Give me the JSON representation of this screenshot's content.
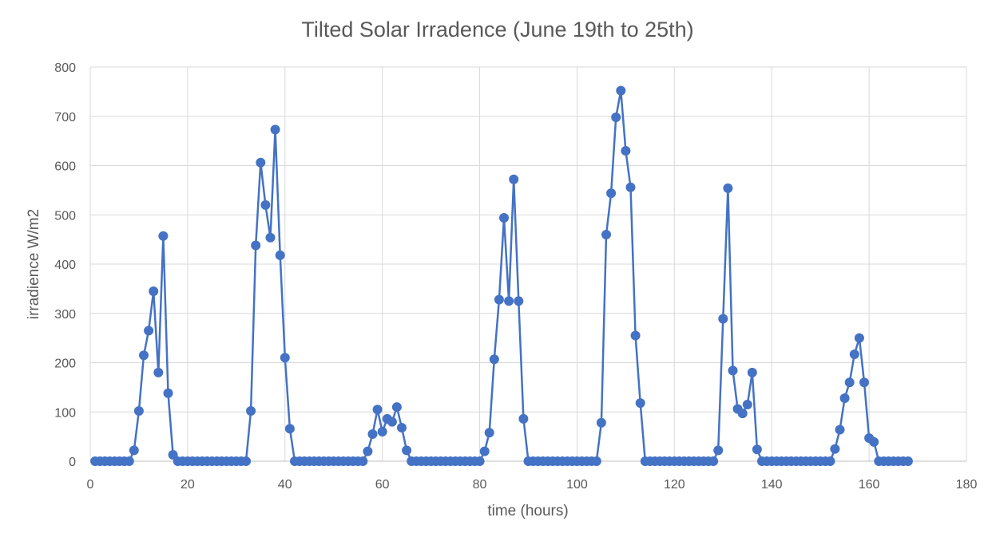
{
  "chart_data": {
    "type": "line",
    "title": "Tilted Solar Irradence (June 19th to 25th)",
    "xlabel": "time (hours)",
    "ylabel": "irradience W/m2",
    "xlim": [
      0,
      180
    ],
    "ylim": [
      0,
      800
    ],
    "x_ticks": [
      0,
      20,
      40,
      60,
      80,
      100,
      120,
      140,
      160,
      180
    ],
    "y_ticks": [
      0,
      100,
      200,
      300,
      400,
      500,
      600,
      700,
      800
    ],
    "grid": true,
    "legend": "none",
    "markers": true,
    "series_color": "#4472C4",
    "grid_color": "#D9D9D9",
    "series": [
      {
        "x": [
          1,
          2,
          3,
          4,
          5,
          6,
          7,
          8,
          9,
          10,
          11,
          12,
          13,
          14,
          15,
          16,
          17,
          18,
          19,
          20,
          21,
          22,
          23,
          24,
          25,
          26,
          27,
          28,
          29,
          30,
          31,
          32,
          33,
          34,
          35,
          36,
          37,
          38,
          39,
          40,
          41,
          42,
          43,
          44,
          45,
          46,
          47,
          48,
          49,
          50,
          51,
          52,
          53,
          54,
          55,
          56,
          57,
          58,
          59,
          60,
          61,
          62,
          63,
          64,
          65,
          66,
          67,
          68,
          69,
          70,
          71,
          72,
          73,
          74,
          75,
          76,
          77,
          78,
          79,
          80,
          81,
          82,
          83,
          84,
          85,
          86,
          87,
          88,
          89,
          90,
          91,
          92,
          93,
          94,
          95,
          96,
          97,
          98,
          99,
          100,
          101,
          102,
          103,
          104,
          105,
          106,
          107,
          108,
          109,
          110,
          111,
          112,
          113,
          114,
          115,
          116,
          117,
          118,
          119,
          120,
          121,
          122,
          123,
          124,
          125,
          126,
          127,
          128,
          129,
          130,
          131,
          132,
          133,
          134,
          135,
          136,
          137,
          138,
          139,
          140,
          141,
          142,
          143,
          144,
          145,
          146,
          147,
          148,
          149,
          150,
          151,
          152,
          153,
          154,
          155,
          156,
          157,
          158,
          159,
          160,
          161,
          162,
          163,
          164,
          165,
          166,
          167,
          168
        ],
        "y": [
          0,
          0,
          0,
          0,
          0,
          0,
          0,
          0,
          22,
          102,
          215,
          265,
          345,
          180,
          457,
          138,
          13,
          0,
          0,
          0,
          0,
          0,
          0,
          0,
          0,
          0,
          0,
          0,
          0,
          0,
          0,
          0,
          102,
          438,
          606,
          520,
          454,
          673,
          418,
          210,
          66,
          0,
          0,
          0,
          0,
          0,
          0,
          0,
          0,
          0,
          0,
          0,
          0,
          0,
          0,
          0,
          20,
          55,
          105,
          60,
          86,
          80,
          110,
          68,
          22,
          0,
          0,
          0,
          0,
          0,
          0,
          0,
          0,
          0,
          0,
          0,
          0,
          0,
          0,
          0,
          20,
          58,
          207,
          328,
          494,
          325,
          572,
          325,
          86,
          0,
          0,
          0,
          0,
          0,
          0,
          0,
          0,
          0,
          0,
          0,
          0,
          0,
          0,
          0,
          78,
          460,
          544,
          698,
          752,
          630,
          556,
          255,
          118,
          0,
          0,
          0,
          0,
          0,
          0,
          0,
          0,
          0,
          0,
          0,
          0,
          0,
          0,
          0,
          22,
          289,
          554,
          184,
          106,
          97,
          115,
          180,
          24,
          0,
          0,
          0,
          0,
          0,
          0,
          0,
          0,
          0,
          0,
          0,
          0,
          0,
          0,
          0,
          25,
          64,
          128,
          160,
          217,
          250,
          160,
          47,
          39,
          0,
          0,
          0,
          0,
          0,
          0,
          0
        ]
      }
    ]
  }
}
